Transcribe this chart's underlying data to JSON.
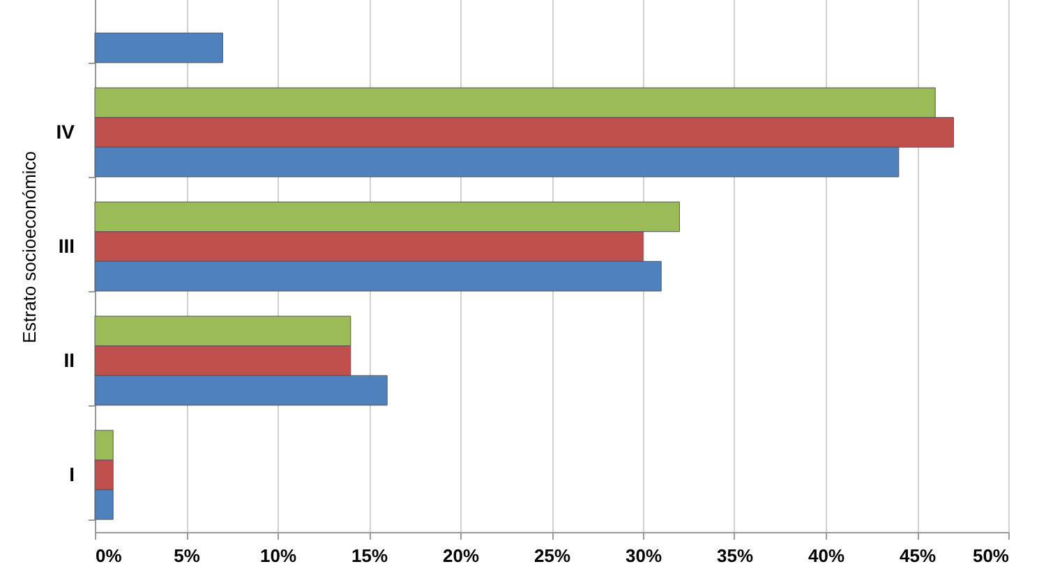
{
  "chart_data": {
    "type": "bar",
    "orientation": "horizontal",
    "ylabel": "Estrato socioeconómico",
    "categories": [
      null,
      "IV",
      "III",
      "II",
      "I"
    ],
    "series": [
      {
        "color": "#9bbb59",
        "values": [
          null,
          46,
          32,
          14,
          1
        ]
      },
      {
        "color": "#c0504d",
        "values": [
          null,
          47,
          30,
          14,
          1
        ]
      },
      {
        "color": "#4f81bd",
        "values": [
          7,
          44,
          31,
          16,
          1
        ]
      }
    ],
    "xlim": [
      0,
      50
    ],
    "xticks": [
      {
        "value": 0,
        "label": "0%"
      },
      {
        "value": 5,
        "label": "5%"
      },
      {
        "value": 10,
        "label": "10%"
      },
      {
        "value": 15,
        "label": "15%"
      },
      {
        "value": 20,
        "label": "20%"
      },
      {
        "value": 25,
        "label": "25%"
      },
      {
        "value": 30,
        "label": "30%"
      },
      {
        "value": 35,
        "label": "35%"
      },
      {
        "value": 40,
        "label": "40%"
      },
      {
        "value": 45,
        "label": "45%"
      },
      {
        "value": 50,
        "label": "50%"
      }
    ],
    "grid": "x"
  }
}
